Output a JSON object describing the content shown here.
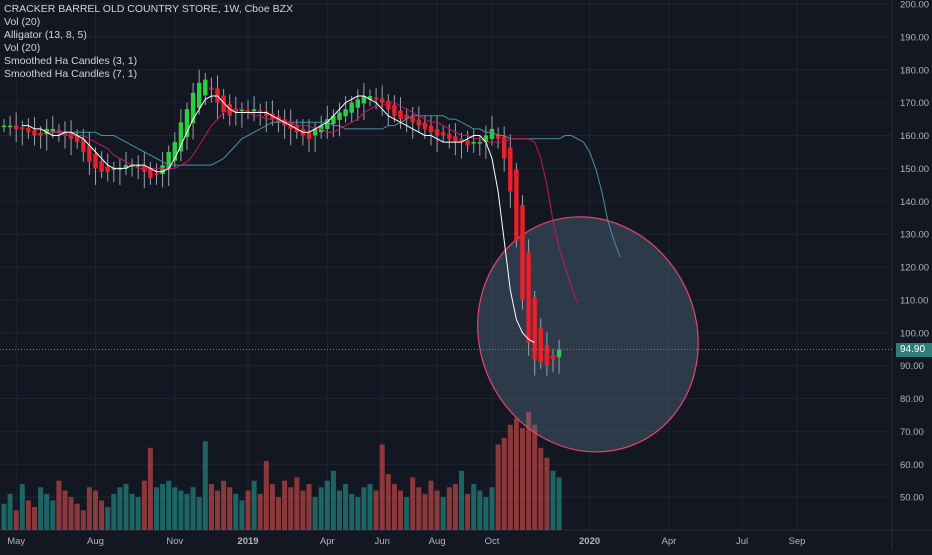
{
  "legend": {
    "title": "CRACKER BARREL OLD COUNTRY STORE, 1W, Cboe BZX",
    "lines": [
      "Vol (20)",
      "Alligator (13, 8, 5)",
      "Vol (20)",
      "Smoothed Ha Candles (3, 1)",
      "Smoothed Ha Candles (7, 1)"
    ]
  },
  "last_price": "94.90",
  "colors": {
    "background": "#131722",
    "up": "#26a69a",
    "down": "#ef5350",
    "candle_up": "#2ecc40",
    "candle_down": "#e8212a",
    "jaw": "#4a90a4",
    "teeth": "#c2185b",
    "lips": "#ffffff",
    "ellipse_fill": "#5b7b95",
    "ellipse_stroke": "#e0476b"
  },
  "chart_data": {
    "type": "candlestick",
    "y_axis": {
      "range": [
        40,
        200
      ],
      "ticks": [
        "200.00",
        "190.00",
        "180.00",
        "170.00",
        "160.00",
        "150.00",
        "140.00",
        "130.00",
        "120.00",
        "110.00",
        "100.00",
        "90.00",
        "80.00",
        "70.00",
        "60.00",
        "50.00"
      ]
    },
    "x_axis": {
      "ticks": [
        "May",
        "Aug",
        "Nov",
        "2019",
        "Apr",
        "Jun",
        "Aug",
        "Oct",
        "2020",
        "Apr",
        "Jul",
        "Sep"
      ]
    },
    "price_close": [
      163,
      163,
      162,
      162,
      161,
      160,
      160,
      162,
      162,
      161,
      160,
      159,
      158,
      155,
      152,
      150,
      149,
      149,
      150,
      150,
      151,
      151,
      151,
      149,
      147,
      148,
      151,
      155,
      158,
      164,
      168,
      173,
      176,
      177,
      174,
      170,
      167,
      166,
      167,
      168,
      167,
      168,
      167,
      166,
      165,
      164,
      163,
      162,
      161,
      160,
      159,
      162,
      163,
      165,
      166,
      167,
      168,
      170,
      171,
      172,
      172,
      171,
      170,
      168,
      166,
      165,
      165,
      164,
      163,
      162,
      161,
      160,
      160,
      159,
      158,
      158,
      157,
      158,
      158,
      160,
      162,
      159,
      153,
      143,
      128,
      110,
      97,
      92,
      91,
      90,
      92,
      94.9
    ],
    "volume": [
      48,
      51,
      46,
      54,
      49,
      47,
      53,
      51,
      49,
      55,
      52,
      50,
      48,
      46,
      53,
      52,
      49,
      47,
      51,
      53,
      54,
      51,
      50,
      55,
      65,
      53,
      54,
      55,
      53,
      52,
      51,
      53,
      50,
      67,
      54,
      52,
      55,
      53,
      51,
      49,
      52,
      55,
      51,
      61,
      54,
      50,
      55,
      53,
      56,
      52,
      54,
      50,
      53,
      55,
      58,
      52,
      54,
      51,
      50,
      53,
      54,
      52,
      66,
      57,
      54,
      52,
      50,
      56,
      53,
      51,
      55,
      52,
      50,
      53,
      54,
      58,
      51,
      54,
      52,
      50,
      53,
      66,
      68,
      72,
      74,
      71,
      76,
      72,
      65,
      62,
      58,
      56
    ],
    "alligator_jaw": [
      161,
      161,
      161,
      161,
      161,
      161,
      161,
      161,
      160,
      160,
      160,
      159,
      158,
      157,
      156,
      155,
      154,
      153,
      152,
      151,
      151,
      151,
      151,
      151,
      151,
      151,
      151,
      152,
      153,
      155,
      157,
      159,
      160,
      161,
      162,
      163,
      164,
      164,
      164,
      164,
      164,
      164,
      164,
      164,
      164,
      164,
      163,
      163,
      162,
      162,
      162,
      162,
      162,
      162,
      162,
      163,
      163,
      164,
      165,
      166,
      166,
      166,
      166,
      166,
      166,
      165,
      165,
      164,
      163,
      162,
      162,
      161,
      161,
      160,
      160,
      159,
      159,
      159,
      159,
      159,
      159,
      159,
      159,
      159,
      160,
      160,
      159,
      158,
      155,
      150,
      143,
      134,
      128,
      123
    ],
    "alligator_teeth": [
      162,
      162,
      161,
      161,
      161,
      160,
      160,
      160,
      160,
      159,
      158,
      157,
      156,
      154,
      153,
      152,
      151,
      150,
      150,
      150,
      150,
      150,
      150,
      150,
      151,
      152,
      154,
      157,
      160,
      163,
      165,
      167,
      168,
      168,
      168,
      167,
      166,
      166,
      165,
      165,
      165,
      164,
      164,
      163,
      163,
      163,
      162,
      162,
      161,
      161,
      162,
      163,
      164,
      165,
      167,
      168,
      169,
      169,
      170,
      170,
      169,
      168,
      167,
      166,
      165,
      164,
      164,
      163,
      162,
      161,
      160,
      160,
      159,
      159,
      158,
      158,
      158,
      158,
      159,
      159,
      159,
      159,
      158,
      153,
      145,
      134,
      126,
      120,
      114,
      109
    ],
    "alligator_lips": [
      163,
      163,
      162,
      162,
      161,
      160,
      160,
      161,
      161,
      160,
      159,
      157,
      155,
      153,
      151,
      150,
      150,
      150,
      151,
      151,
      151,
      150,
      149,
      149,
      150,
      153,
      157,
      161,
      165,
      168,
      171,
      172,
      172,
      170,
      168,
      167,
      167,
      167,
      167,
      167,
      167,
      166,
      165,
      164,
      163,
      162,
      161,
      161,
      162,
      163,
      164,
      166,
      168,
      170,
      171,
      172,
      172,
      171,
      170,
      168,
      166,
      165,
      164,
      163,
      162,
      161,
      160,
      160,
      159,
      158,
      158,
      158,
      158,
      159,
      160,
      160,
      158,
      153,
      143,
      128,
      113,
      104,
      100,
      98,
      97
    ],
    "annotation": {
      "type": "ellipse",
      "region_price": [
        65,
        134
      ],
      "region_weeks": [
        78,
        101
      ]
    }
  }
}
